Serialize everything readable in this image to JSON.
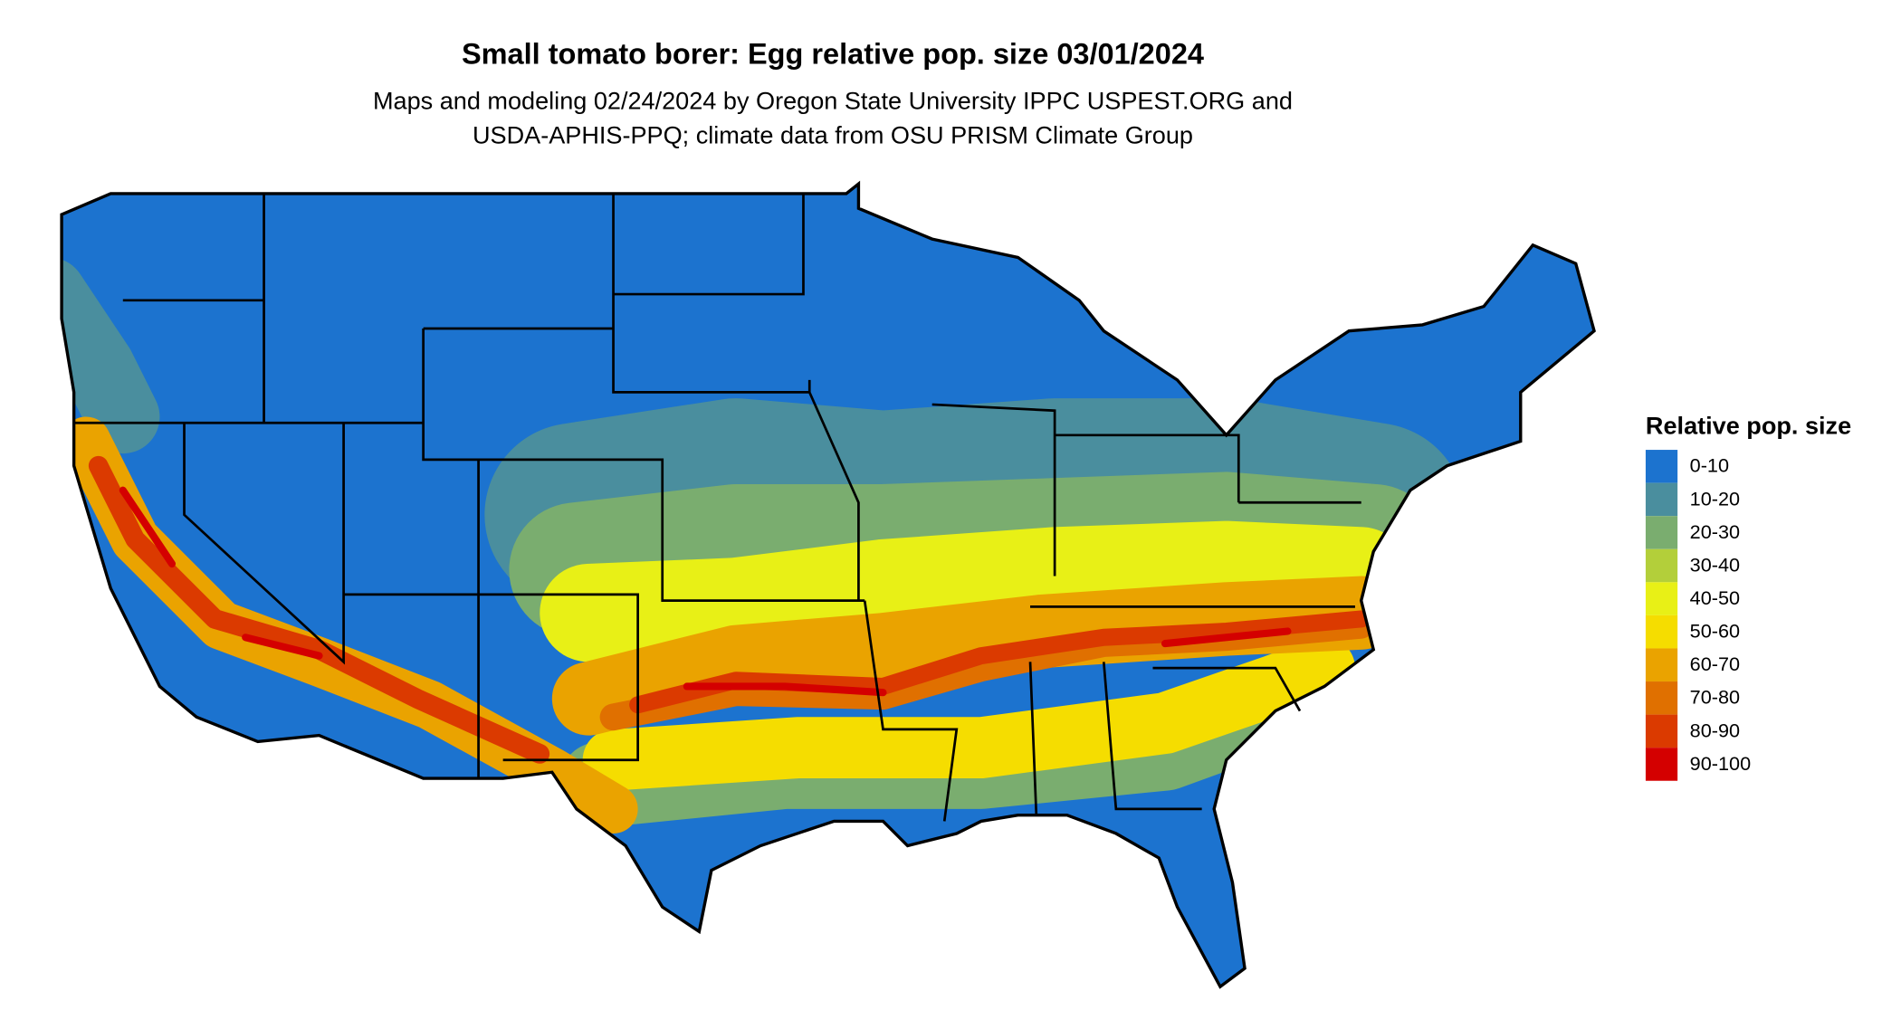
{
  "title": "Small tomato borer: Egg relative pop. size 03/01/2024",
  "subtitle": [
    "Maps and modeling 02/24/2024 by Oregon State University IPPC USPEST.ORG and",
    "USDA-APHIS-PPQ; climate data from OSU PRISM Climate Group"
  ],
  "legend": {
    "title": "Relative pop. size",
    "items": [
      {
        "label": "0-10",
        "color": "#1c73cf"
      },
      {
        "label": "10-20",
        "color": "#4a8e9e"
      },
      {
        "label": "20-30",
        "color": "#7aad6f"
      },
      {
        "label": "30-40",
        "color": "#b3cf3a"
      },
      {
        "label": "40-50",
        "color": "#e8f016"
      },
      {
        "label": "50-60",
        "color": "#f5dd00"
      },
      {
        "label": "60-70",
        "color": "#eaa300"
      },
      {
        "label": "70-80",
        "color": "#e07000"
      },
      {
        "label": "80-90",
        "color": "#db3a00"
      },
      {
        "label": "90-100",
        "color": "#d40000"
      }
    ]
  }
}
